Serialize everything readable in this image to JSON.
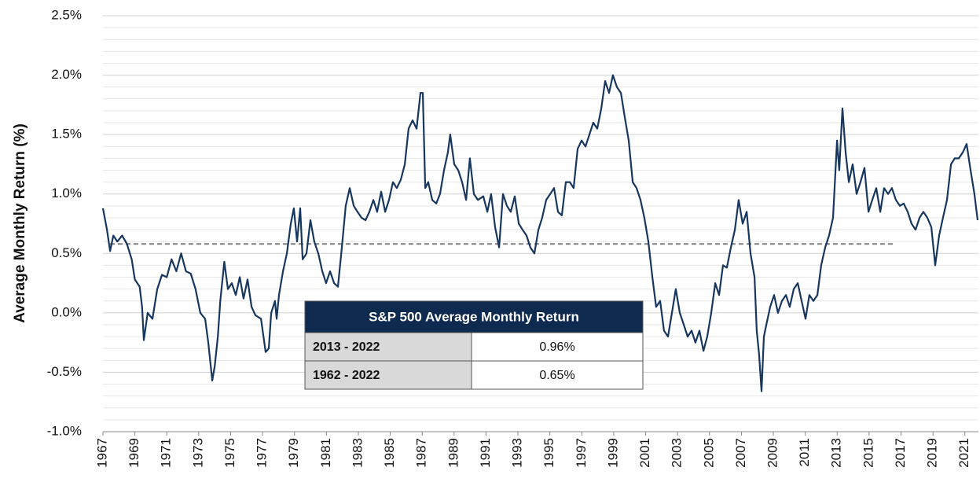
{
  "chart_data": {
    "type": "line",
    "ylabel": "Average Monthly Return (%)",
    "color": "#17375e",
    "x": [
      1967.0,
      1967.25,
      1967.45,
      1967.65,
      1967.9,
      1968.2,
      1968.5,
      1968.8,
      1969.0,
      1969.3,
      1969.45,
      1969.56,
      1969.8,
      1970.1,
      1970.4,
      1970.7,
      1971.0,
      1971.3,
      1971.6,
      1971.9,
      1972.2,
      1972.5,
      1972.8,
      1973.1,
      1973.4,
      1973.6,
      1973.85,
      1974.0,
      1974.2,
      1974.35,
      1974.6,
      1974.83,
      1975.07,
      1975.32,
      1975.57,
      1975.81,
      1976.06,
      1976.31,
      1976.55,
      1976.9,
      1977.19,
      1977.39,
      1977.54,
      1977.78,
      1977.88,
      1978.03,
      1978.28,
      1978.52,
      1978.77,
      1978.96,
      1979.16,
      1979.36,
      1979.51,
      1979.75,
      1980.0,
      1980.24,
      1980.49,
      1980.74,
      1980.98,
      1981.23,
      1981.48,
      1981.72,
      1981.97,
      1982.21,
      1982.46,
      1982.71,
      1982.95,
      1983.2,
      1983.45,
      1983.69,
      1983.94,
      1984.18,
      1984.43,
      1984.68,
      1984.92,
      1985.17,
      1985.41,
      1985.66,
      1985.91,
      1986.15,
      1986.4,
      1986.65,
      1986.89,
      1987.04,
      1987.19,
      1987.38,
      1987.63,
      1987.88,
      1988.12,
      1988.37,
      1988.61,
      1988.76,
      1989.01,
      1989.26,
      1989.5,
      1989.75,
      1989.99,
      1990.24,
      1990.49,
      1990.83,
      1991.08,
      1991.32,
      1991.57,
      1991.82,
      1992.06,
      1992.31,
      1992.55,
      1992.8,
      1993.05,
      1993.29,
      1993.54,
      1993.78,
      1994.03,
      1994.28,
      1994.52,
      1994.77,
      1995.02,
      1995.26,
      1995.51,
      1995.75,
      1996.0,
      1996.25,
      1996.49,
      1996.74,
      1996.99,
      1997.23,
      1997.48,
      1997.72,
      1997.97,
      1998.22,
      1998.46,
      1998.71,
      1998.95,
      1999.2,
      1999.45,
      1999.69,
      1999.94,
      2000.19,
      2000.43,
      2000.68,
      2000.92,
      2001.17,
      2001.42,
      2001.66,
      2001.91,
      2002.15,
      2002.4,
      2002.65,
      2002.89,
      2003.14,
      2003.39,
      2003.63,
      2003.88,
      2004.12,
      2004.37,
      2004.62,
      2004.86,
      2005.11,
      2005.36,
      2005.6,
      2005.85,
      2006.09,
      2006.34,
      2006.59,
      2006.83,
      2007.08,
      2007.33,
      2007.57,
      2007.82,
      2007.96,
      2008.11,
      2008.26,
      2008.41,
      2008.56,
      2008.8,
      2009.05,
      2009.29,
      2009.54,
      2009.79,
      2010.03,
      2010.28,
      2010.53,
      2010.77,
      2011.02,
      2011.26,
      2011.51,
      2011.76,
      2012.0,
      2012.25,
      2012.49,
      2012.74,
      2012.99,
      2013.13,
      2013.33,
      2013.53,
      2013.73,
      2013.97,
      2014.22,
      2014.46,
      2014.71,
      2014.96,
      2015.2,
      2015.45,
      2015.7,
      2015.94,
      2016.19,
      2016.43,
      2016.68,
      2016.93,
      2017.17,
      2017.42,
      2017.66,
      2017.91,
      2018.16,
      2018.4,
      2018.65,
      2018.9,
      2019.14,
      2019.39,
      2019.63,
      2019.88,
      2020.13,
      2020.37,
      2020.62,
      2020.87,
      2021.11,
      2021.36,
      2021.6,
      2021.8
    ],
    "values": [
      0.88,
      0.7,
      0.52,
      0.65,
      0.6,
      0.65,
      0.58,
      0.45,
      0.28,
      0.22,
      0.05,
      -0.23,
      0.0,
      -0.05,
      0.2,
      0.32,
      0.3,
      0.45,
      0.35,
      0.5,
      0.35,
      0.33,
      0.2,
      0.0,
      -0.05,
      -0.25,
      -0.57,
      -0.45,
      -0.2,
      0.1,
      0.43,
      0.2,
      0.25,
      0.15,
      0.3,
      0.12,
      0.28,
      0.05,
      -0.02,
      -0.05,
      -0.33,
      -0.3,
      0.0,
      0.1,
      -0.05,
      0.15,
      0.35,
      0.5,
      0.75,
      0.88,
      0.6,
      0.88,
      0.45,
      0.5,
      0.78,
      0.6,
      0.5,
      0.35,
      0.25,
      0.35,
      0.25,
      0.22,
      0.55,
      0.9,
      1.05,
      0.9,
      0.85,
      0.8,
      0.78,
      0.85,
      0.95,
      0.85,
      1.02,
      0.85,
      0.95,
      1.1,
      1.05,
      1.12,
      1.25,
      1.55,
      1.62,
      1.55,
      1.85,
      1.85,
      1.05,
      1.1,
      0.95,
      0.92,
      1.0,
      1.2,
      1.35,
      1.5,
      1.25,
      1.2,
      1.1,
      0.95,
      1.3,
      1.0,
      0.95,
      0.98,
      0.85,
      1.0,
      0.72,
      0.55,
      1.0,
      0.9,
      0.85,
      0.98,
      0.75,
      0.7,
      0.65,
      0.55,
      0.5,
      0.7,
      0.8,
      0.95,
      1.0,
      1.05,
      0.85,
      0.82,
      1.1,
      1.1,
      1.05,
      1.38,
      1.45,
      1.4,
      1.5,
      1.6,
      1.55,
      1.72,
      1.95,
      1.85,
      2.0,
      1.9,
      1.85,
      1.65,
      1.45,
      1.1,
      1.05,
      0.95,
      0.8,
      0.6,
      0.3,
      0.05,
      0.1,
      -0.15,
      -0.2,
      0.0,
      0.2,
      0.0,
      -0.1,
      -0.2,
      -0.15,
      -0.25,
      -0.15,
      -0.32,
      -0.2,
      0.0,
      0.25,
      0.15,
      0.4,
      0.38,
      0.55,
      0.7,
      0.95,
      0.75,
      0.85,
      0.5,
      0.3,
      -0.15,
      -0.35,
      -0.66,
      -0.2,
      -0.1,
      0.05,
      0.15,
      0.0,
      0.1,
      0.15,
      0.05,
      0.2,
      0.25,
      0.1,
      -0.05,
      0.15,
      0.1,
      0.15,
      0.4,
      0.55,
      0.65,
      0.8,
      1.45,
      1.2,
      1.72,
      1.35,
      1.1,
      1.25,
      1.0,
      1.1,
      1.22,
      0.85,
      0.95,
      1.05,
      0.85,
      1.05,
      1.0,
      1.05,
      0.95,
      0.9,
      0.92,
      0.85,
      0.75,
      0.7,
      0.8,
      0.85,
      0.8,
      0.72,
      0.4,
      0.65,
      0.8,
      0.95,
      1.25,
      1.3,
      1.3,
      1.35,
      1.42,
      1.2,
      1.0,
      0.78
    ],
    "xlim": [
      1967,
      2021.85
    ],
    "xticks": [
      1967,
      1969,
      1971,
      1973,
      1975,
      1977,
      1979,
      1981,
      1983,
      1985,
      1987,
      1989,
      1991,
      1993,
      1995,
      1997,
      1999,
      2001,
      2003,
      2005,
      2007,
      2009,
      2011,
      2013,
      2015,
      2017,
      2019,
      2021
    ],
    "ylim": [
      -1.0,
      2.5
    ],
    "yticks": [
      {
        "value": -1.0,
        "label": "-1.0%"
      },
      {
        "value": -0.5,
        "label": "-0.5%"
      },
      {
        "value": 0.0,
        "label": "0.0%"
      },
      {
        "value": 0.5,
        "label": "0.5%"
      },
      {
        "value": 1.0,
        "label": "1.0%"
      },
      {
        "value": 1.5,
        "label": "1.5%"
      },
      {
        "value": 2.0,
        "label": "2.0%"
      },
      {
        "value": 2.5,
        "label": "2.5%"
      }
    ],
    "minor_yticks": [
      -0.9,
      -0.8,
      -0.7,
      -0.6,
      -0.4,
      -0.3,
      -0.2,
      -0.1,
      0.1,
      0.2,
      0.3,
      0.4,
      0.6,
      0.7,
      0.8,
      0.9,
      1.1,
      1.2,
      1.3,
      1.4,
      1.6,
      1.7,
      1.8,
      1.9,
      2.1,
      2.2,
      2.3,
      2.4
    ],
    "grid": true,
    "reference_line": {
      "value": 0.58,
      "x": [
        1967.44,
        2016.68
      ],
      "color": "#7f7f7f",
      "style": "dashed"
    },
    "table": {
      "title": "S&P 500 Average Monthly Return",
      "header_color": "#0f2a4f",
      "rows": [
        [
          "2013 - 2022",
          "0.96%"
        ],
        [
          "1962 - 2022",
          "0.65%"
        ]
      ]
    }
  }
}
